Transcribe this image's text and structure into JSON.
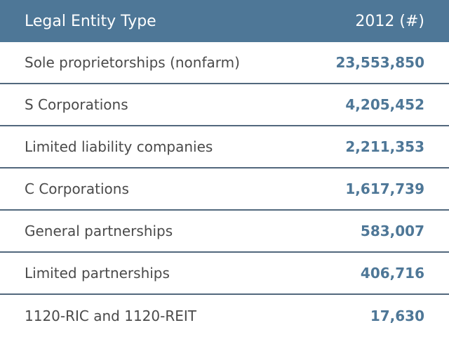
{
  "colors": {
    "header_bg": "#4e7797",
    "divider": "#52687d",
    "label_text": "#4a4a4a",
    "value_text": "#4e7797",
    "background": "#ffffff"
  },
  "table": {
    "header": {
      "col_entity": "Legal Entity Type",
      "col_value": "2012 (#)"
    },
    "rows": [
      {
        "label": "Sole proprietorships (nonfarm)",
        "value": "23,553,850"
      },
      {
        "label": "S Corporations",
        "value": "4,205,452"
      },
      {
        "label": "Limited liability companies",
        "value": "2,211,353"
      },
      {
        "label": "C Corporations",
        "value": "1,617,739"
      },
      {
        "label": "General partnerships",
        "value": "583,007"
      },
      {
        "label": "Limited partnerships",
        "value": "406,716"
      },
      {
        "label": "1120-RIC and 1120-REIT",
        "value": "17,630"
      }
    ]
  }
}
